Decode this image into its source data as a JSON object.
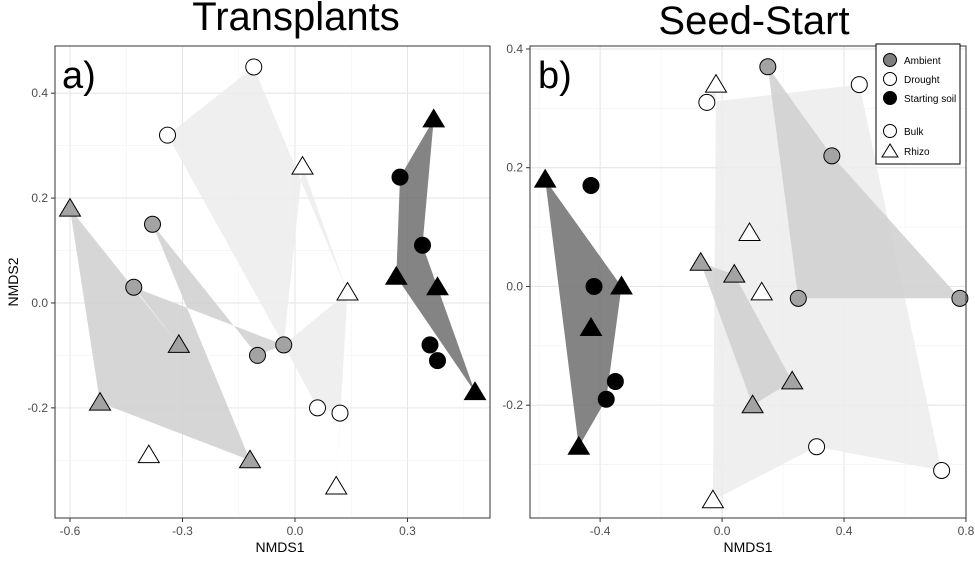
{
  "legend": {
    "fill_entries": [
      {
        "label": "Ambient",
        "color": "#7f7f7f"
      },
      {
        "label": "Drought",
        "color": "#ffffff"
      },
      {
        "label": "Starting soil",
        "color": "#000000"
      }
    ],
    "shape_entries": [
      {
        "label": "Bulk",
        "shape": "circle"
      },
      {
        "label": "Rhizo",
        "shape": "triangle"
      }
    ]
  },
  "hull_colors": {
    "Ambient": "#cfcfcf",
    "Drought": "#ececec",
    "Starting soil": "#6e6e6e"
  },
  "point_colors": {
    "Ambient": "#a3a3a3",
    "Drought": "#ffffff",
    "Starting soil": "#000000"
  },
  "chart_data": [
    {
      "type": "scatter",
      "title": "Transplants",
      "panel_label": "a)",
      "xlabel": "NMDS1",
      "ylabel": "NMDS2",
      "xlim": [
        -0.64,
        0.52
      ],
      "ylim": [
        -0.41,
        0.49
      ],
      "xticks": [
        -0.6,
        -0.3,
        0.0,
        0.3
      ],
      "xtick_labels": [
        "-0.6",
        "-0.3",
        "0.0",
        "0.3"
      ],
      "yticks": [
        -0.2,
        0.0,
        0.2,
        0.4
      ],
      "ytick_labels": [
        "-0.2",
        "0.0",
        "0.2",
        "0.4"
      ],
      "grid": true,
      "hulls": [
        {
          "group": "Drought",
          "points": [
            [
              -0.11,
              0.45
            ],
            [
              -0.34,
              0.32
            ],
            [
              -0.03,
              -0.08
            ],
            [
              0.02,
              0.26
            ],
            [
              0.14,
              0.02
            ]
          ]
        },
        {
          "group": "Drought",
          "points": [
            [
              0.06,
              -0.2
            ],
            [
              0.12,
              -0.21
            ],
            [
              0.11,
              -0.35
            ],
            [
              0.14,
              0.02
            ],
            [
              -0.03,
              -0.08
            ]
          ]
        },
        {
          "group": "Ambient",
          "points": [
            [
              -0.6,
              0.18
            ],
            [
              -0.52,
              -0.19
            ],
            [
              -0.12,
              -0.3
            ],
            [
              -0.38,
              0.15
            ],
            [
              -0.1,
              -0.1
            ],
            [
              -0.03,
              -0.08
            ],
            [
              -0.43,
              0.03
            ],
            [
              -0.31,
              -0.08
            ]
          ]
        },
        {
          "group": "Starting soil",
          "points": [
            [
              0.37,
              0.35
            ],
            [
              0.28,
              0.24
            ],
            [
              0.27,
              0.05
            ],
            [
              0.48,
              -0.17
            ],
            [
              0.34,
              0.11
            ]
          ]
        }
      ],
      "points": [
        {
          "x": -0.11,
          "y": 0.45,
          "shape": "circle",
          "group": "Drought"
        },
        {
          "x": -0.34,
          "y": 0.32,
          "shape": "circle",
          "group": "Drought"
        },
        {
          "x": 0.06,
          "y": -0.2,
          "shape": "circle",
          "group": "Drought"
        },
        {
          "x": 0.12,
          "y": -0.21,
          "shape": "circle",
          "group": "Drought"
        },
        {
          "x": 0.02,
          "y": 0.26,
          "shape": "triangle",
          "group": "Drought"
        },
        {
          "x": 0.14,
          "y": 0.02,
          "shape": "triangle",
          "group": "Drought"
        },
        {
          "x": 0.11,
          "y": -0.35,
          "shape": "triangle",
          "group": "Drought"
        },
        {
          "x": -0.39,
          "y": -0.29,
          "shape": "triangle",
          "group": "Drought"
        },
        {
          "x": -0.38,
          "y": 0.15,
          "shape": "circle",
          "group": "Ambient"
        },
        {
          "x": -0.43,
          "y": 0.03,
          "shape": "circle",
          "group": "Ambient"
        },
        {
          "x": -0.1,
          "y": -0.1,
          "shape": "circle",
          "group": "Ambient"
        },
        {
          "x": -0.03,
          "y": -0.08,
          "shape": "circle",
          "group": "Ambient"
        },
        {
          "x": -0.6,
          "y": 0.18,
          "shape": "triangle",
          "group": "Ambient"
        },
        {
          "x": -0.31,
          "y": -0.08,
          "shape": "triangle",
          "group": "Ambient"
        },
        {
          "x": -0.52,
          "y": -0.19,
          "shape": "triangle",
          "group": "Ambient"
        },
        {
          "x": -0.12,
          "y": -0.3,
          "shape": "triangle",
          "group": "Ambient"
        },
        {
          "x": 0.28,
          "y": 0.24,
          "shape": "circle",
          "group": "Starting soil"
        },
        {
          "x": 0.34,
          "y": 0.11,
          "shape": "circle",
          "group": "Starting soil"
        },
        {
          "x": 0.36,
          "y": -0.08,
          "shape": "circle",
          "group": "Starting soil"
        },
        {
          "x": 0.38,
          "y": -0.11,
          "shape": "circle",
          "group": "Starting soil"
        },
        {
          "x": 0.37,
          "y": 0.35,
          "shape": "triangle",
          "group": "Starting soil"
        },
        {
          "x": 0.27,
          "y": 0.05,
          "shape": "triangle",
          "group": "Starting soil"
        },
        {
          "x": 0.38,
          "y": 0.03,
          "shape": "triangle",
          "group": "Starting soil"
        },
        {
          "x": 0.48,
          "y": -0.17,
          "shape": "triangle",
          "group": "Starting soil"
        }
      ]
    },
    {
      "type": "scatter",
      "title": "Seed-Start",
      "panel_label": "b)",
      "xlabel": "NMDS1",
      "ylabel": "",
      "xlim": [
        -0.63,
        0.8
      ],
      "ylim": [
        -0.39,
        0.405
      ],
      "xticks": [
        -0.4,
        0.0,
        0.4,
        0.8
      ],
      "xtick_labels": [
        "-0.4",
        "0.0",
        "0.4",
        "0.8"
      ],
      "yticks": [
        -0.2,
        0.0,
        0.2,
        0.4
      ],
      "ytick_labels": [
        "-0.2",
        "0.0",
        "0.2",
        "0.4"
      ],
      "grid": true,
      "hulls": [
        {
          "group": "Drought",
          "points": [
            [
              -0.05,
              0.31
            ],
            [
              0.45,
              0.34
            ],
            [
              0.72,
              -0.31
            ],
            [
              0.31,
              -0.27
            ],
            [
              -0.03,
              -0.36
            ],
            [
              -0.02,
              0.34
            ]
          ]
        },
        {
          "group": "Ambient",
          "points": [
            [
              0.15,
              0.37
            ],
            [
              0.36,
              0.22
            ],
            [
              0.78,
              -0.02
            ],
            [
              0.25,
              -0.02
            ]
          ]
        },
        {
          "group": "Ambient",
          "points": [
            [
              -0.07,
              0.04
            ],
            [
              0.04,
              0.02
            ],
            [
              0.23,
              -0.16
            ],
            [
              0.1,
              -0.2
            ]
          ]
        },
        {
          "group": "Starting soil",
          "points": [
            [
              -0.58,
              0.18
            ],
            [
              -0.33,
              0.0
            ],
            [
              -0.38,
              -0.19
            ],
            [
              -0.47,
              -0.27
            ]
          ]
        }
      ],
      "points": [
        {
          "x": -0.05,
          "y": 0.31,
          "shape": "circle",
          "group": "Drought"
        },
        {
          "x": 0.45,
          "y": 0.34,
          "shape": "circle",
          "group": "Drought"
        },
        {
          "x": 0.31,
          "y": -0.27,
          "shape": "circle",
          "group": "Drought"
        },
        {
          "x": 0.72,
          "y": -0.31,
          "shape": "circle",
          "group": "Drought"
        },
        {
          "x": -0.02,
          "y": 0.34,
          "shape": "triangle",
          "group": "Drought"
        },
        {
          "x": 0.09,
          "y": 0.09,
          "shape": "triangle",
          "group": "Drought"
        },
        {
          "x": 0.13,
          "y": -0.01,
          "shape": "triangle",
          "group": "Drought"
        },
        {
          "x": -0.03,
          "y": -0.36,
          "shape": "triangle",
          "group": "Drought"
        },
        {
          "x": 0.15,
          "y": 0.37,
          "shape": "circle",
          "group": "Ambient"
        },
        {
          "x": 0.36,
          "y": 0.22,
          "shape": "circle",
          "group": "Ambient"
        },
        {
          "x": 0.25,
          "y": -0.02,
          "shape": "circle",
          "group": "Ambient"
        },
        {
          "x": 0.78,
          "y": -0.02,
          "shape": "circle",
          "group": "Ambient"
        },
        {
          "x": -0.07,
          "y": 0.04,
          "shape": "triangle",
          "group": "Ambient"
        },
        {
          "x": 0.04,
          "y": 0.02,
          "shape": "triangle",
          "group": "Ambient"
        },
        {
          "x": 0.23,
          "y": -0.16,
          "shape": "triangle",
          "group": "Ambient"
        },
        {
          "x": 0.1,
          "y": -0.2,
          "shape": "triangle",
          "group": "Ambient"
        },
        {
          "x": -0.43,
          "y": 0.17,
          "shape": "circle",
          "group": "Starting soil"
        },
        {
          "x": -0.42,
          "y": 0.0,
          "shape": "circle",
          "group": "Starting soil"
        },
        {
          "x": -0.35,
          "y": -0.16,
          "shape": "circle",
          "group": "Starting soil"
        },
        {
          "x": -0.38,
          "y": -0.19,
          "shape": "circle",
          "group": "Starting soil"
        },
        {
          "x": -0.58,
          "y": 0.18,
          "shape": "triangle",
          "group": "Starting soil"
        },
        {
          "x": -0.33,
          "y": 0.0,
          "shape": "triangle",
          "group": "Starting soil"
        },
        {
          "x": -0.43,
          "y": -0.07,
          "shape": "triangle",
          "group": "Starting soil"
        },
        {
          "x": -0.47,
          "y": -0.27,
          "shape": "triangle",
          "group": "Starting soil"
        }
      ]
    }
  ]
}
